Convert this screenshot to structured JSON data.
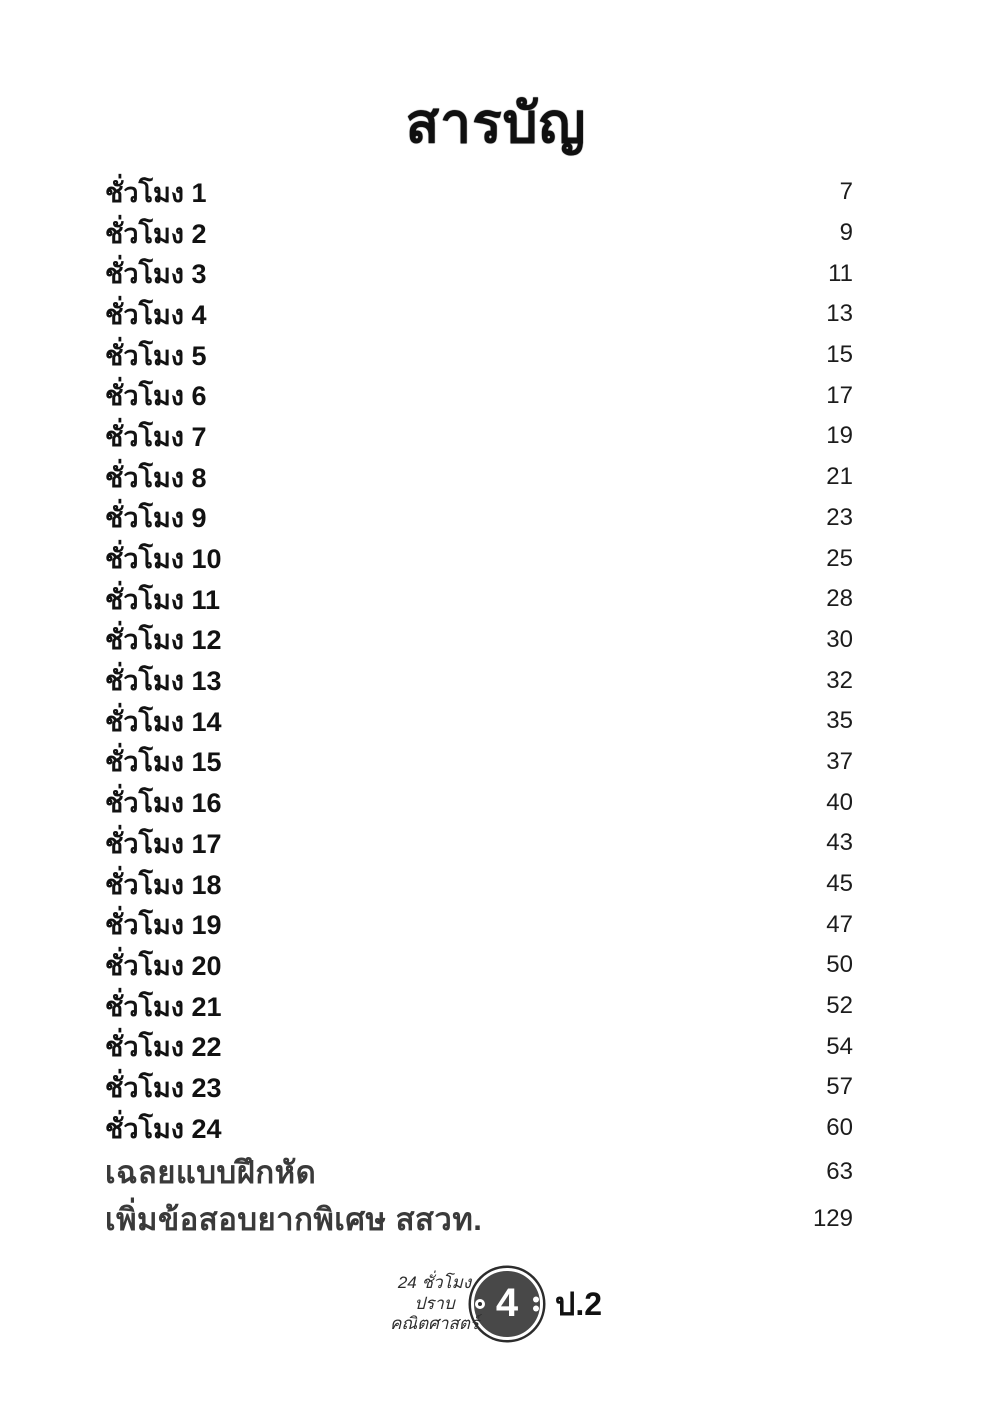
{
  "page": {
    "title": "สารบัญ"
  },
  "toc": {
    "items": [
      {
        "label": "ชั่วโมง 1",
        "page": "7",
        "variant": "chapter"
      },
      {
        "label": "ชั่วโมง 2",
        "page": "9",
        "variant": "chapter"
      },
      {
        "label": "ชั่วโมง 3",
        "page": "11",
        "variant": "chapter"
      },
      {
        "label": "ชั่วโมง 4",
        "page": "13",
        "variant": "chapter"
      },
      {
        "label": "ชั่วโมง 5",
        "page": "15",
        "variant": "chapter"
      },
      {
        "label": "ชั่วโมง 6",
        "page": "17",
        "variant": "chapter"
      },
      {
        "label": "ชั่วโมง 7",
        "page": "19",
        "variant": "chapter"
      },
      {
        "label": "ชั่วโมง 8",
        "page": "21",
        "variant": "chapter"
      },
      {
        "label": "ชั่วโมง 9",
        "page": "23",
        "variant": "chapter"
      },
      {
        "label": "ชั่วโมง 10",
        "page": "25",
        "variant": "chapter"
      },
      {
        "label": "ชั่วโมง 11",
        "page": "28",
        "variant": "chapter"
      },
      {
        "label": "ชั่วโมง 12",
        "page": "30",
        "variant": "chapter"
      },
      {
        "label": "ชั่วโมง 13",
        "page": "32",
        "variant": "chapter"
      },
      {
        "label": "ชั่วโมง 14",
        "page": "35",
        "variant": "chapter"
      },
      {
        "label": "ชั่วโมง 15",
        "page": "37",
        "variant": "chapter"
      },
      {
        "label": "ชั่วโมง 16",
        "page": "40",
        "variant": "chapter"
      },
      {
        "label": "ชั่วโมง 17",
        "page": "43",
        "variant": "chapter"
      },
      {
        "label": "ชั่วโมง 18",
        "page": "45",
        "variant": "chapter"
      },
      {
        "label": "ชั่วโมง 19",
        "page": "47",
        "variant": "chapter"
      },
      {
        "label": "ชั่วโมง 20",
        "page": "50",
        "variant": "chapter"
      },
      {
        "label": "ชั่วโมง 21",
        "page": "52",
        "variant": "chapter"
      },
      {
        "label": "ชั่วโมง 22",
        "page": "54",
        "variant": "chapter"
      },
      {
        "label": "ชั่วโมง 23",
        "page": "57",
        "variant": "chapter"
      },
      {
        "label": "ชั่วโมง 24",
        "page": "60",
        "variant": "chapter"
      },
      {
        "label": "เฉลยแบบฝึกหัด",
        "page": "63",
        "variant": "extra"
      },
      {
        "label": "เพิ่มข้อสอบยากพิเศษ สสวท.",
        "page": "129",
        "variant": "extra"
      }
    ]
  },
  "footer": {
    "series_line1": "24 ชั่วโมง",
    "series_line2": "ปราบ",
    "series_line3": "คณิตศาสตร์",
    "page_number": "4",
    "grade": "ป.2"
  },
  "colors": {
    "background": "#ffffff",
    "text": "#121212",
    "extra_text": "#3a3a3a",
    "badge_fill": "#484848",
    "badge_ring": "#ffffff"
  }
}
